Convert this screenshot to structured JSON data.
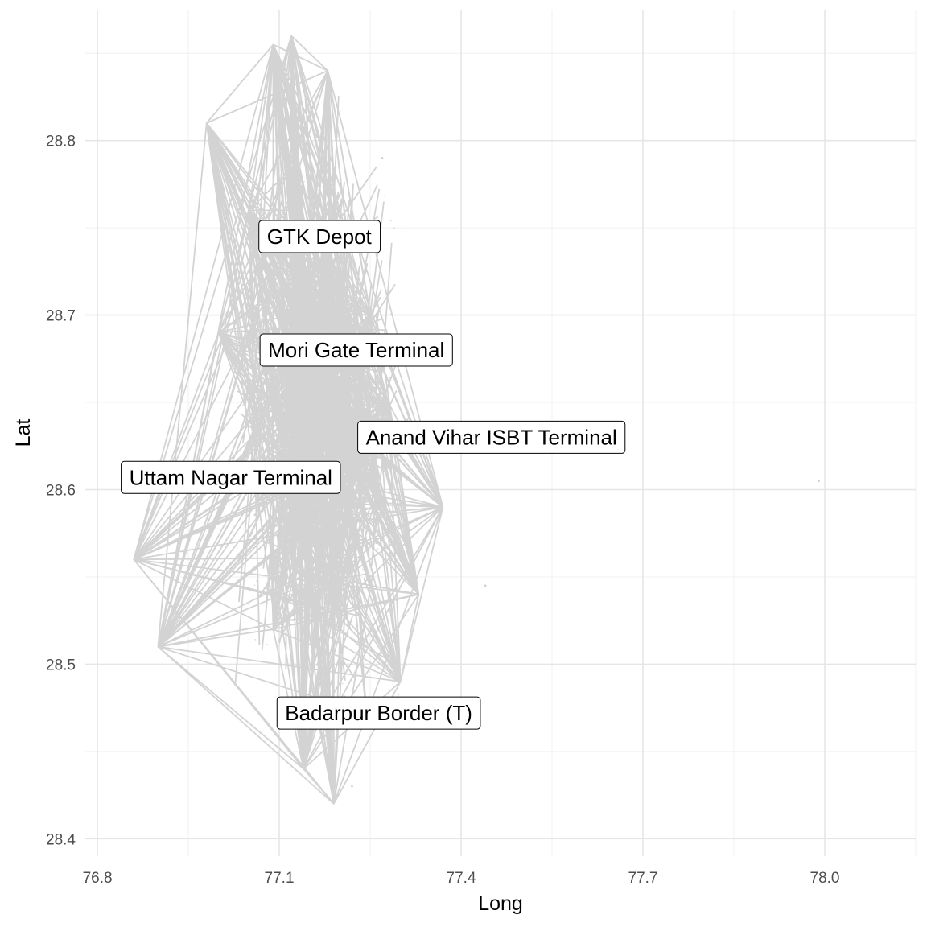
{
  "chart_data": {
    "type": "line",
    "title": "",
    "xlabel": "Long",
    "ylabel": "Lat",
    "xlim": [
      76.78,
      78.15
    ],
    "ylim": [
      28.39,
      28.875
    ],
    "x_ticks": [
      {
        "value": 76.8,
        "label": "76.8"
      },
      {
        "value": 77.1,
        "label": "77.1"
      },
      {
        "value": 77.4,
        "label": "77.4"
      },
      {
        "value": 77.7,
        "label": "77.7"
      },
      {
        "value": 78.0,
        "label": "78.0"
      }
    ],
    "y_ticks": [
      {
        "value": 28.4,
        "label": "28.4"
      },
      {
        "value": 28.5,
        "label": "28.5"
      },
      {
        "value": 28.6,
        "label": "28.6"
      },
      {
        "value": 28.7,
        "label": "28.7"
      },
      {
        "value": 28.8,
        "label": "28.8"
      }
    ],
    "grid": true,
    "route_color": "#d3d3d3",
    "hubs": [
      {
        "x": 77.09,
        "y": 28.855
      },
      {
        "x": 76.98,
        "y": 28.81
      },
      {
        "x": 76.86,
        "y": 28.56
      },
      {
        "x": 77.3,
        "y": 28.49
      },
      {
        "x": 77.37,
        "y": 28.59
      },
      {
        "x": 77.0,
        "y": 28.69
      },
      {
        "x": 77.19,
        "y": 28.53
      },
      {
        "x": 77.15,
        "y": 28.66
      },
      {
        "x": 77.22,
        "y": 28.6
      },
      {
        "x": 77.05,
        "y": 28.76
      },
      {
        "x": 77.28,
        "y": 28.65
      },
      {
        "x": 77.13,
        "y": 28.72
      },
      {
        "x": 77.09,
        "y": 28.52
      },
      {
        "x": 76.9,
        "y": 28.51
      },
      {
        "x": 77.18,
        "y": 28.84
      },
      {
        "x": 77.14,
        "y": 28.44
      },
      {
        "x": 77.19,
        "y": 28.42
      },
      {
        "x": 77.33,
        "y": 28.54
      },
      {
        "x": 77.12,
        "y": 28.86
      },
      {
        "x": 77.25,
        "y": 28.7
      }
    ],
    "outlier_points": [
      {
        "x": 77.99,
        "y": 28.605
      },
      {
        "x": 77.44,
        "y": 28.545
      },
      {
        "x": 77.27,
        "y": 28.79
      },
      {
        "x": 77.22,
        "y": 28.43
      }
    ],
    "labels": [
      {
        "text": "GTK Depot",
        "x": 77.166,
        "y": 28.745
      },
      {
        "text": "Mori Gate Terminal",
        "x": 77.227,
        "y": 28.68
      },
      {
        "text": "Anand Vihar ISBT Terminal",
        "x": 77.45,
        "y": 28.63
      },
      {
        "text": "Uttam Nagar Terminal",
        "x": 77.02,
        "y": 28.607
      },
      {
        "text": "Badarpur Border (T)",
        "x": 77.264,
        "y": 28.472
      }
    ]
  }
}
